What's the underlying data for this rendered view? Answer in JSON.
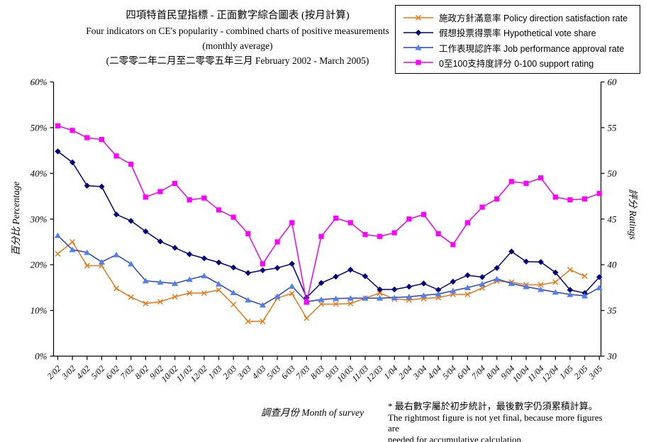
{
  "title": {
    "line1": "四項特首民望指標 - 正面數字綜合圖表 (按月計算)",
    "line2": "Four indicators on CE's popularity - combined charts of positive measurements",
    "line3": "(monthly average)",
    "line4": "(二零零二年二月至二零零五年三月 February 2002 - March 2005)"
  },
  "footnote": {
    "line1": "* 最右數字屬於初步統計，最後數字仍須累積計算。",
    "line2": "The rightmost figure is not yet final, because more figures are",
    "line3": "needed for accumulative calculation."
  },
  "chart_data": {
    "type": "line",
    "x_axis": {
      "label": "調查月份 Month of survey",
      "categories": [
        "2/02",
        "3/02",
        "4/02",
        "5/02",
        "6/02",
        "7/02",
        "8/02",
        "9/02",
        "10/02",
        "11/02",
        "12/02",
        "1/03",
        "2/03",
        "3/03",
        "4/03",
        "5/03",
        "6/03",
        "7/03",
        "8/03",
        "9/03",
        "10/03",
        "11/03",
        "12/03",
        "1/04",
        "2/04",
        "3/04",
        "4/04",
        "5/04",
        "6/04",
        "7/04",
        "8/04",
        "9/04",
        "10/04",
        "11/04",
        "12/04",
        "1/05",
        "2/05",
        "3/05"
      ]
    },
    "left_axis": {
      "label": "百分比 Percentage",
      "min": 0,
      "max": 60,
      "step": 10,
      "unit": "%"
    },
    "right_axis": {
      "label": "評分 Ratings",
      "min": 30,
      "max": 60,
      "step": 5,
      "unit": ""
    },
    "grid": false,
    "legend_position": "top-right",
    "series": [
      {
        "id": "policy-satisfaction",
        "name": "施政方針滿意率 Policy direction satisfaction rate",
        "axis": "left",
        "marker": "x",
        "color": "#E97612",
        "marker_color": "#E97612",
        "values": [
          22.4,
          25.0,
          19.8,
          19.8,
          14.8,
          12.9,
          11.5,
          11.9,
          13.0,
          13.8,
          13.8,
          14.5,
          11.3,
          7.6,
          7.6,
          12.7,
          13.7,
          8.3,
          11.4,
          11.4,
          11.5,
          12.7,
          13.8,
          12.5,
          12.3,
          12.6,
          12.8,
          13.5,
          13.5,
          14.9,
          16.4,
          16.2,
          15.6,
          15.6,
          16.2,
          18.9,
          17.5,
          null
        ]
      },
      {
        "id": "vote-share",
        "name": "假想投票得票率 Hypothetical vote share",
        "axis": "left",
        "marker": "diamond",
        "color": "#000080",
        "marker_color": "#000080",
        "values": [
          44.8,
          42.4,
          37.3,
          37.1,
          31.0,
          29.6,
          27.3,
          25.1,
          23.7,
          22.3,
          21.4,
          20.5,
          19.4,
          18.2,
          18.8,
          19.3,
          20.2,
          12.8,
          16.0,
          17.4,
          18.9,
          17.5,
          14.6,
          14.6,
          15.2,
          15.9,
          14.5,
          16.3,
          17.7,
          17.3,
          19.3,
          22.9,
          20.7,
          20.6,
          18.3,
          14.5,
          13.8,
          17.3
        ]
      },
      {
        "id": "job-approval",
        "name": "工作表現認許率 Job performance approval rate",
        "axis": "left",
        "marker": "triangle",
        "color": "#2841C6",
        "marker_color": "#4E80F0",
        "values": [
          26.4,
          23.3,
          22.7,
          20.6,
          22.2,
          20.2,
          16.5,
          16.2,
          15.9,
          16.8,
          17.6,
          15.8,
          13.9,
          12.3,
          11.2,
          13.1,
          15.3,
          11.9,
          12.4,
          12.6,
          12.7,
          12.7,
          12.7,
          12.8,
          13.0,
          13.3,
          13.6,
          14.3,
          15.0,
          15.8,
          16.9,
          15.9,
          15.2,
          14.6,
          14.0,
          13.5,
          13.2,
          15.0
        ]
      },
      {
        "id": "support-rating",
        "name": "0至100支持度評分 0-100 support rating",
        "axis": "right",
        "marker": "square",
        "color": "#EE00EE",
        "marker_color": "#FF00FF",
        "values": [
          55.2,
          54.7,
          53.9,
          53.7,
          51.9,
          51.0,
          47.4,
          48.0,
          48.9,
          47.1,
          47.3,
          46.0,
          45.2,
          43.4,
          40.1,
          42.5,
          44.6,
          35.9,
          43.1,
          45.1,
          44.6,
          43.3,
          43.1,
          43.5,
          45.0,
          45.5,
          43.4,
          42.2,
          44.6,
          46.3,
          47.2,
          49.1,
          48.9,
          49.5,
          47.4,
          47.1,
          47.2,
          47.8
        ]
      }
    ]
  }
}
